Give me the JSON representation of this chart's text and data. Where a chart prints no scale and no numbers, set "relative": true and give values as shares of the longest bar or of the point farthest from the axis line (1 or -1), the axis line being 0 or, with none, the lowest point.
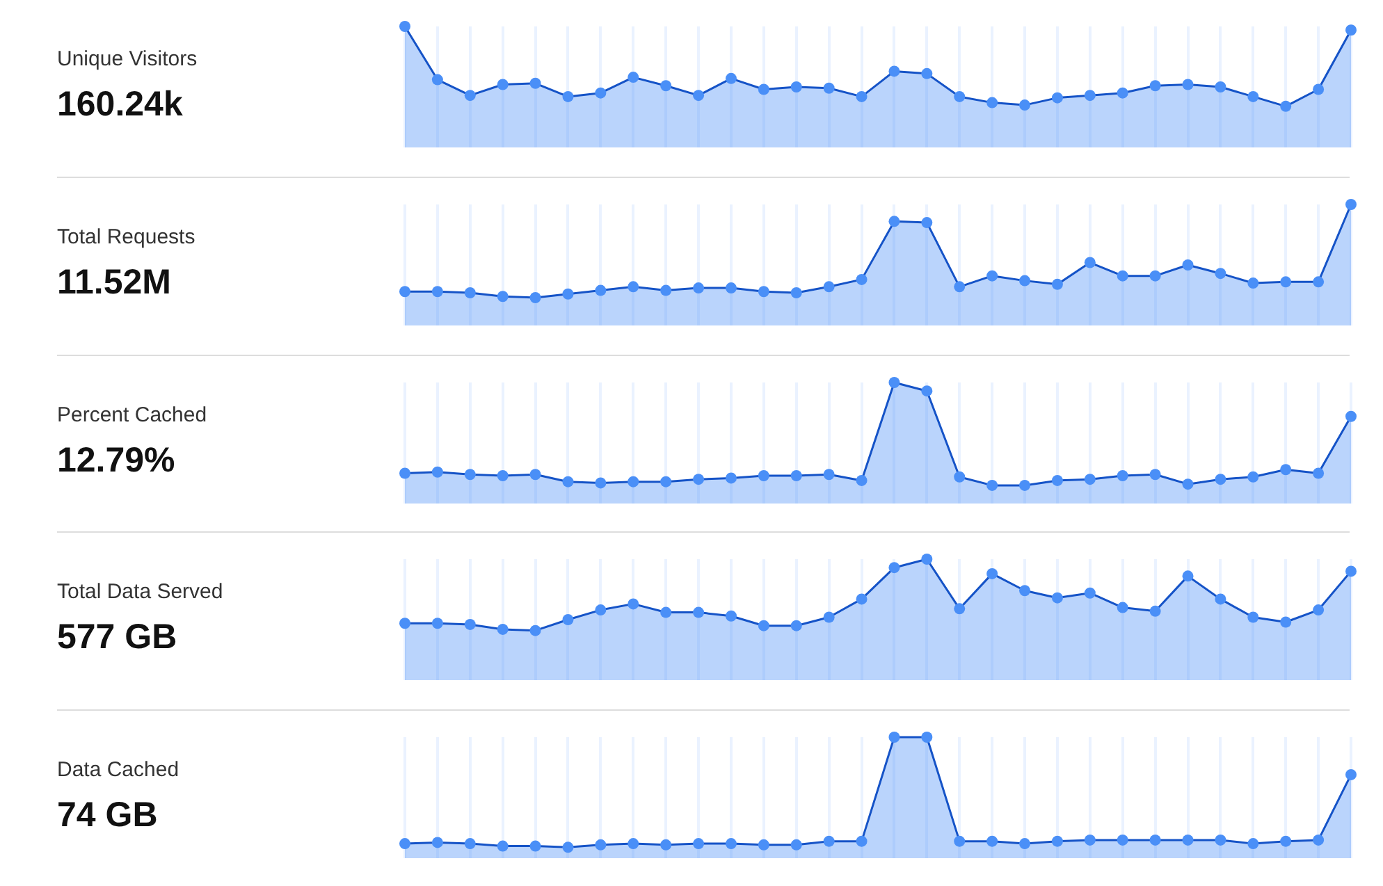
{
  "chart_data": [
    {
      "type": "area",
      "ylabel": "Unique Visitors",
      "annotations": [
        "160.24k"
      ],
      "relative": true,
      "grid": "x",
      "marker": "circle",
      "categories": [
        null,
        null,
        null,
        null,
        null,
        null,
        null,
        null,
        null,
        null,
        null,
        null,
        null,
        null,
        null,
        null,
        null,
        null,
        null,
        null,
        null,
        null,
        null,
        null,
        null,
        null,
        null,
        null,
        null,
        null
      ],
      "series": [
        {
          "color": "#4a8ff7",
          "values": [
            1.0,
            0.56,
            0.43,
            0.52,
            0.53,
            0.42,
            0.45,
            0.58,
            0.51,
            0.43,
            0.57,
            0.48,
            0.5,
            0.49,
            0.42,
            0.63,
            0.61,
            0.42,
            0.37,
            0.35,
            0.41,
            0.43,
            0.45,
            0.51,
            0.52,
            0.5,
            0.42,
            0.34,
            0.48,
            0.97
          ]
        }
      ]
    },
    {
      "type": "area",
      "ylabel": "Total Requests",
      "annotations": [
        "11.52M"
      ],
      "relative": true,
      "grid": "x",
      "marker": "circle",
      "categories": [
        null,
        null,
        null,
        null,
        null,
        null,
        null,
        null,
        null,
        null,
        null,
        null,
        null,
        null,
        null,
        null,
        null,
        null,
        null,
        null,
        null,
        null,
        null,
        null,
        null,
        null,
        null,
        null,
        null,
        null
      ],
      "series": [
        {
          "color": "#4a8ff7",
          "values": [
            0.28,
            0.28,
            0.27,
            0.24,
            0.23,
            0.26,
            0.29,
            0.32,
            0.29,
            0.31,
            0.31,
            0.28,
            0.27,
            0.32,
            0.38,
            0.86,
            0.85,
            0.32,
            0.41,
            0.37,
            0.34,
            0.52,
            0.41,
            0.41,
            0.5,
            0.43,
            0.35,
            0.36,
            0.36,
            1.0
          ]
        }
      ]
    },
    {
      "type": "area",
      "ylabel": "Percent Cached",
      "annotations": [
        "12.79%"
      ],
      "relative": true,
      "grid": "x",
      "marker": "circle",
      "categories": [
        null,
        null,
        null,
        null,
        null,
        null,
        null,
        null,
        null,
        null,
        null,
        null,
        null,
        null,
        null,
        null,
        null,
        null,
        null,
        null,
        null,
        null,
        null,
        null,
        null,
        null,
        null,
        null,
        null,
        null
      ],
      "series": [
        {
          "color": "#4a8ff7",
          "values": [
            0.25,
            0.26,
            0.24,
            0.23,
            0.24,
            0.18,
            0.17,
            0.18,
            0.18,
            0.2,
            0.21,
            0.23,
            0.23,
            0.24,
            0.19,
            1.0,
            0.93,
            0.22,
            0.15,
            0.15,
            0.19,
            0.2,
            0.23,
            0.24,
            0.16,
            0.2,
            0.22,
            0.28,
            0.25,
            0.72
          ]
        }
      ]
    },
    {
      "type": "area",
      "ylabel": "Total Data Served",
      "annotations": [
        "577 GB"
      ],
      "relative": true,
      "grid": "x",
      "marker": "circle",
      "categories": [
        null,
        null,
        null,
        null,
        null,
        null,
        null,
        null,
        null,
        null,
        null,
        null,
        null,
        null,
        null,
        null,
        null,
        null,
        null,
        null,
        null,
        null,
        null,
        null,
        null,
        null,
        null,
        null,
        null,
        null
      ],
      "series": [
        {
          "color": "#4a8ff7",
          "values": [
            0.47,
            0.47,
            0.46,
            0.42,
            0.41,
            0.5,
            0.58,
            0.63,
            0.56,
            0.56,
            0.53,
            0.45,
            0.45,
            0.52,
            0.67,
            0.93,
            1.0,
            0.59,
            0.88,
            0.74,
            0.68,
            0.72,
            0.6,
            0.57,
            0.86,
            0.67,
            0.52,
            0.48,
            0.58,
            0.9
          ]
        }
      ]
    },
    {
      "type": "area",
      "ylabel": "Data Cached",
      "annotations": [
        "74 GB"
      ],
      "relative": true,
      "grid": "x",
      "marker": "circle",
      "categories": [
        null,
        null,
        null,
        null,
        null,
        null,
        null,
        null,
        null,
        null,
        null,
        null,
        null,
        null,
        null,
        null,
        null,
        null,
        null,
        null,
        null,
        null,
        null,
        null,
        null,
        null,
        null,
        null,
        null,
        null
      ],
      "series": [
        {
          "color": "#4a8ff7",
          "values": [
            0.12,
            0.13,
            0.12,
            0.1,
            0.1,
            0.09,
            0.11,
            0.12,
            0.11,
            0.12,
            0.12,
            0.11,
            0.11,
            0.14,
            0.14,
            1.0,
            1.0,
            0.14,
            0.14,
            0.12,
            0.14,
            0.15,
            0.15,
            0.15,
            0.15,
            0.15,
            0.12,
            0.14,
            0.15,
            0.69
          ]
        }
      ]
    }
  ]
}
